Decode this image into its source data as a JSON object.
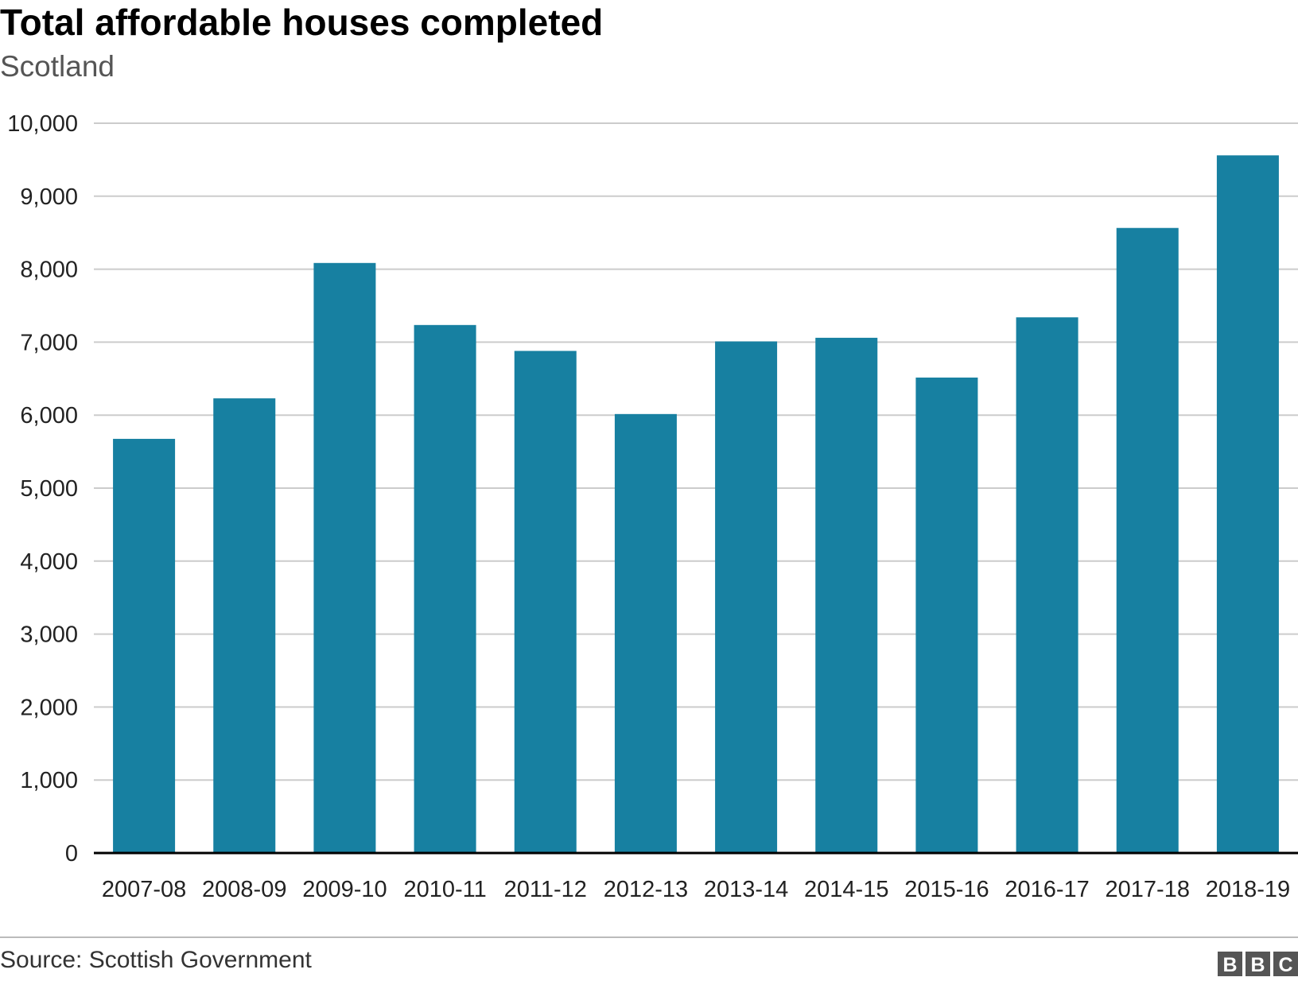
{
  "chart_data": {
    "type": "bar",
    "title": "Total affordable houses completed",
    "subtitle": "Scotland",
    "categories": [
      "2007-08",
      "2008-09",
      "2009-10",
      "2010-11",
      "2011-12",
      "2012-13",
      "2013-14",
      "2014-15",
      "2015-16",
      "2016-17",
      "2017-18",
      "2018-19"
    ],
    "values": [
      5675,
      6230,
      8085,
      7235,
      6880,
      6015,
      7010,
      7060,
      6515,
      7340,
      8565,
      9560
    ],
    "ylim": [
      0,
      10000
    ],
    "yticks": [
      0,
      1000,
      2000,
      3000,
      4000,
      5000,
      6000,
      7000,
      8000,
      9000,
      10000
    ],
    "ytick_labels": [
      "0",
      "1,000",
      "2,000",
      "3,000",
      "4,000",
      "5,000",
      "6,000",
      "7,000",
      "8,000",
      "9,000",
      "10,000"
    ],
    "grid": true,
    "bar_color": "#1780a1",
    "gridline_color": "#cccccc",
    "axis_color": "#000000"
  },
  "footer": {
    "source": "Source: Scottish Government",
    "logo_letters": [
      "B",
      "B",
      "C"
    ],
    "logo_color": "#555555"
  }
}
